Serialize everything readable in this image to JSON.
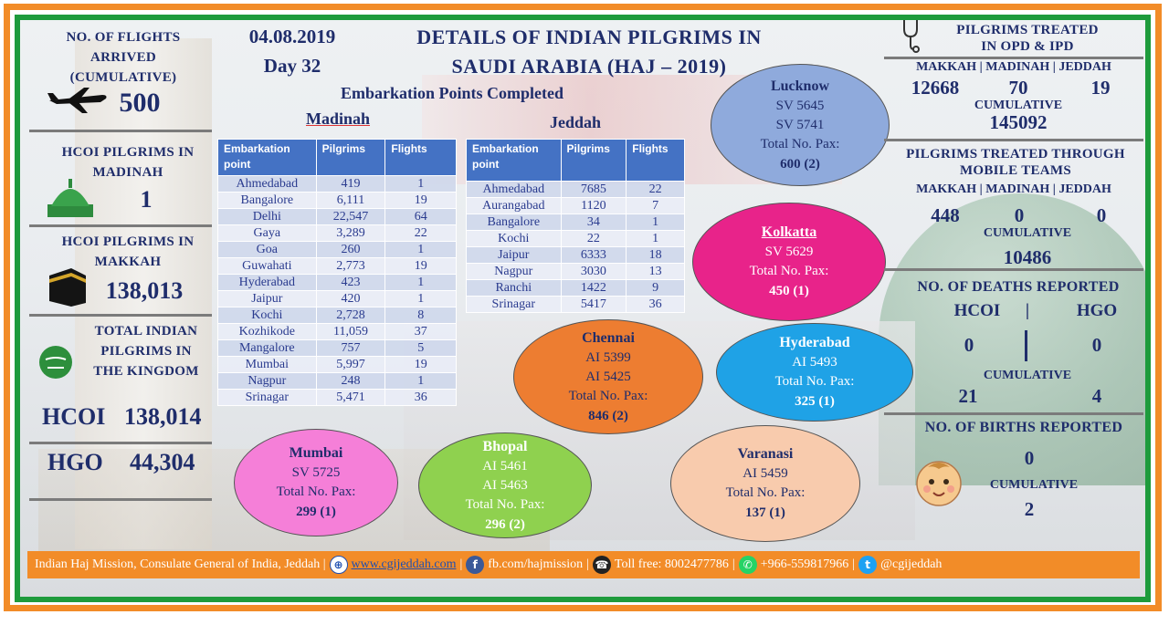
{
  "header": {
    "date": "04.08.2019",
    "day": "Day 32",
    "title_line1": "DETAILS OF INDIAN PILGRIMS IN",
    "title_line2": "SAUDI ARABIA (HAJ – 2019)",
    "embark_heading": "Embarkation Points Completed",
    "madinah_label": "Madinah",
    "jeddah_label": "Jeddah"
  },
  "left": {
    "flights_title": [
      "NO. OF FLIGHTS",
      "ARRIVED",
      "(CUMULATIVE)"
    ],
    "flights_value": "500",
    "madinah_title": [
      "HCOI PILGRIMS IN",
      "MADINAH"
    ],
    "madinah_value": "1",
    "makkah_title": [
      "HCOI PILGRIMS IN",
      "MAKKAH"
    ],
    "makkah_value": "138,013",
    "total_title": [
      "TOTAL INDIAN",
      "PILGRIMS IN",
      "THE KINGDOM"
    ],
    "hcoi_label": "HCOI",
    "hcoi_value": "138,014",
    "hgo_label": "HGO",
    "hgo_value": "44,304"
  },
  "madinah_table": {
    "headers": [
      "Embarkation point",
      "Pilgrims",
      "Flights"
    ],
    "rows": [
      [
        "Ahmedabad",
        "419",
        "1"
      ],
      [
        "Bangalore",
        "6,111",
        "19"
      ],
      [
        "Delhi",
        "22,547",
        "64"
      ],
      [
        "Gaya",
        "3,289",
        "22"
      ],
      [
        "Goa",
        "260",
        "1"
      ],
      [
        "Guwahati",
        "2,773",
        "19"
      ],
      [
        "Hyderabad",
        "423",
        "1"
      ],
      [
        "Jaipur",
        "420",
        "1"
      ],
      [
        "Kochi",
        "2,728",
        "8"
      ],
      [
        "Kozhikode",
        "11,059",
        "37"
      ],
      [
        "Mangalore",
        "757",
        "5"
      ],
      [
        "Mumbai",
        "5,997",
        "19"
      ],
      [
        "Nagpur",
        "248",
        "1"
      ],
      [
        "Srinagar",
        "5,471",
        "36"
      ]
    ]
  },
  "jeddah_table": {
    "headers": [
      "Embarkation point",
      "Pilgrims",
      "Flights"
    ],
    "rows": [
      [
        "Ahmedabad",
        "7685",
        "22"
      ],
      [
        "Aurangabad",
        "1120",
        "7"
      ],
      [
        "Bangalore",
        "34",
        "1"
      ],
      [
        "Kochi",
        "22",
        "1"
      ],
      [
        "Jaipur",
        "6333",
        "18"
      ],
      [
        "Nagpur",
        "3030",
        "13"
      ],
      [
        "Ranchi",
        "1422",
        "9"
      ],
      [
        "Srinagar",
        "5417",
        "36"
      ]
    ]
  },
  "ovals": {
    "lucknow": {
      "city": "Lucknow",
      "lines": [
        "SV 5645",
        "SV 5741",
        "Total No. Pax:"
      ],
      "total": "600 (2)",
      "color": "#8faadc"
    },
    "kolkatta": {
      "city": "Kolkatta",
      "lines": [
        "SV 5629",
        "Total No. Pax:"
      ],
      "total": "450 (1)",
      "color": "#e8238a"
    },
    "chennai": {
      "city": "Chennai",
      "lines": [
        "AI 5399",
        "AI 5425",
        "Total No. Pax:"
      ],
      "total": "846 (2)",
      "color": "#ed7d31"
    },
    "hyderabad": {
      "city": "Hyderabad",
      "lines": [
        "AI 5493",
        "Total No. Pax:"
      ],
      "total": "325 (1)",
      "color": "#1fa2e6"
    },
    "mumbai": {
      "city": "Mumbai",
      "lines": [
        "SV 5725",
        "Total No. Pax:"
      ],
      "total": "299 (1)",
      "color": "#f57fd8"
    },
    "bhopal": {
      "city": "Bhopal",
      "lines": [
        "AI 5461",
        "AI 5463",
        "Total No. Pax:"
      ],
      "total": "296 (2)",
      "color": "#8fd14f"
    },
    "varanasi": {
      "city": "Varanasi",
      "lines": [
        "AI 5459",
        "Total No. Pax:"
      ],
      "total": "137 (1)",
      "color": "#f8cbad"
    }
  },
  "right": {
    "opd_title": [
      "PILGRIMS TREATED",
      "IN OPD & IPD"
    ],
    "opd_cities": "MAKKAH | MADINAH | JEDDAH",
    "opd_values": [
      "12668",
      "70",
      "19"
    ],
    "opd_cum_label": "CUMULATIVE",
    "opd_cum_value": "145092",
    "mobile_title": [
      "PILGRIMS TREATED THROUGH",
      "MOBILE TEAMS"
    ],
    "mobile_cities": "MAKKAH | MADINAH | JEDDAH",
    "mobile_values": [
      "448",
      "0",
      "0"
    ],
    "mobile_cum_label": "CUMULATIVE",
    "mobile_cum_value": "10486",
    "deaths_title": "NO. OF DEATHS REPORTED",
    "deaths_hcoi": "HCOI",
    "deaths_sep": "|",
    "deaths_hgo": "HGO",
    "deaths_hcoi_value": "0",
    "deaths_hgo_value": "0",
    "deaths_cum_label": "CUMULATIVE",
    "deaths_cum_hcoi": "21",
    "deaths_cum_hgo": "4",
    "births_title": "NO. OF BIRTHS REPORTED",
    "births_value": "0",
    "births_cum_label": "CUMULATIVE",
    "births_cum_value": "2"
  },
  "footer": {
    "mission": "Indian Haj Mission, Consulate General of India, Jeddah |",
    "website": "www.cgijeddah.com",
    "facebook": "fb.com/hajmission",
    "tollfree": "Toll free: 8002477786",
    "whatsapp": "+966-559817966",
    "twitter": "@cgijeddah",
    "sep": "|"
  },
  "icons": [
    "airplane-icon",
    "green-dome-icon",
    "kaaba-icon",
    "saudi-flag-icon",
    "stethoscope-icon",
    "baby-face-icon",
    "globe-icon",
    "facebook-icon",
    "phone-icon",
    "whatsapp-icon",
    "twitter-icon"
  ]
}
